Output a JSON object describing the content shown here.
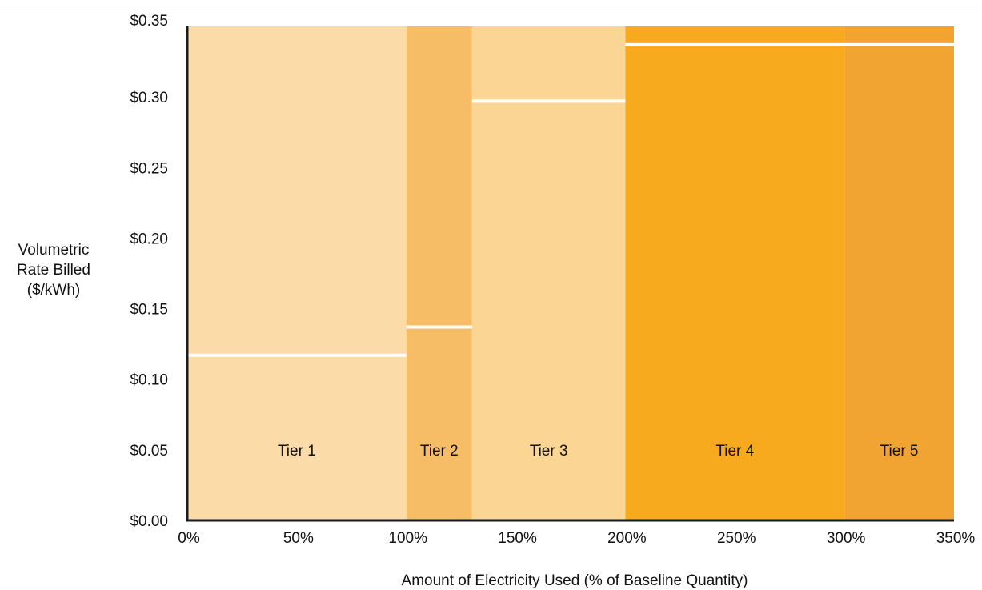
{
  "chart_data": {
    "type": "bar",
    "title": "",
    "xlabel": "Amount of Electricity Used (% of Baseline Quantity)",
    "ylabel_lines": [
      "Volumetric",
      "Rate Billed",
      "($/kWh)"
    ],
    "xlim": [
      0,
      350
    ],
    "ylim": [
      0,
      0.35
    ],
    "x_ticks": [
      0,
      50,
      100,
      150,
      200,
      250,
      300,
      350
    ],
    "x_tick_labels": [
      "0%",
      "50%",
      "100%",
      "150%",
      "200%",
      "250%",
      "300%",
      "350%"
    ],
    "y_ticks": [
      0,
      0.05,
      0.1,
      0.15,
      0.2,
      0.25,
      0.3,
      0.35
    ],
    "y_tick_labels": [
      "$0.00",
      "$0.05",
      "$0.10",
      "$0.15",
      "$0.20",
      "$0.25",
      "$0.30",
      "$0.35"
    ],
    "grid": false,
    "tiers": [
      {
        "label": "Tier 1",
        "x_start": 0,
        "x_end": 100,
        "rate": 0.117,
        "color": "#fbdba8"
      },
      {
        "label": "Tier 2",
        "x_start": 100,
        "x_end": 130,
        "rate": 0.137,
        "color": "#f7bc66"
      },
      {
        "label": "Tier 3",
        "x_start": 130,
        "x_end": 200,
        "rate": 0.297,
        "color": "#fbd594"
      },
      {
        "label": "Tier 4",
        "x_start": 200,
        "x_end": 300,
        "rate": 0.337,
        "color": "#f8aa1f"
      },
      {
        "label": "Tier 5",
        "x_start": 300,
        "x_end": 350,
        "rate": 0.337,
        "color": "#f2a432"
      }
    ],
    "rate_line_color": "#ffffff",
    "axis_color": "#1a1a1a"
  }
}
